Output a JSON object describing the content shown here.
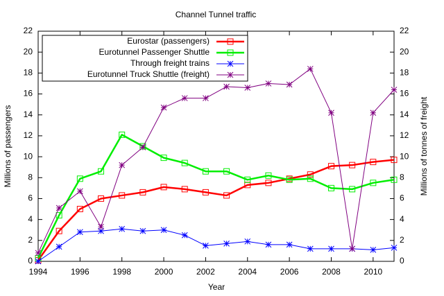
{
  "chart_data": {
    "type": "line",
    "title": "Channel Tunnel traffic",
    "x_label": "Year",
    "y_label": "Millions of passengers",
    "y2_label": "Millions of tonnes of freight",
    "x": [
      1994,
      1995,
      1996,
      1997,
      1998,
      1999,
      2000,
      2001,
      2002,
      2003,
      2004,
      2005,
      2006,
      2007,
      2008,
      2009,
      2010,
      2011
    ],
    "xlim": [
      1994,
      2011
    ],
    "xticks": [
      1994,
      1996,
      1998,
      2000,
      2002,
      2004,
      2006,
      2008,
      2010
    ],
    "ylim": [
      0,
      22
    ],
    "yticks": [
      0,
      2,
      4,
      6,
      8,
      10,
      12,
      14,
      16,
      18,
      20,
      22
    ],
    "y2lim": [
      0,
      22
    ],
    "y2ticks": [
      0,
      2,
      4,
      6,
      8,
      10,
      12,
      14,
      16,
      18,
      20,
      22
    ],
    "legend": "upper left",
    "series": [
      {
        "name": "Eurostar (passengers)",
        "color": "#ff0000",
        "marker": "square",
        "width": 2.5,
        "values": [
          0.1,
          2.9,
          5.0,
          6.0,
          6.3,
          6.6,
          7.1,
          6.9,
          6.6,
          6.3,
          7.3,
          7.5,
          7.9,
          8.3,
          9.1,
          9.2,
          9.5,
          9.7
        ]
      },
      {
        "name": "Eurotunnel Passenger Shuttle",
        "color": "#00ee00",
        "marker": "square",
        "width": 2.5,
        "values": [
          0.3,
          4.4,
          7.9,
          8.6,
          12.1,
          11.0,
          9.9,
          9.4,
          8.6,
          8.6,
          7.8,
          8.2,
          7.8,
          7.9,
          7.0,
          6.9,
          7.5,
          7.8
        ]
      },
      {
        "name": "Through freight trains",
        "color": "#0000ff",
        "marker": "star",
        "width": 1,
        "axis": "y2",
        "values": [
          0.0,
          1.4,
          2.8,
          2.9,
          3.1,
          2.9,
          3.0,
          2.5,
          1.5,
          1.7,
          1.9,
          1.6,
          1.6,
          1.2,
          1.2,
          1.2,
          1.1,
          1.3
        ]
      },
      {
        "name": "Eurotunnel Truck Shuttle (freight)",
        "color": "#800080",
        "marker": "star",
        "width": 1,
        "axis": "y2",
        "values": [
          0.8,
          5.1,
          6.7,
          3.3,
          9.2,
          10.9,
          14.7,
          15.6,
          15.6,
          16.7,
          16.6,
          17.0,
          16.9,
          18.4,
          14.2,
          1.2,
          14.2,
          16.4
        ]
      }
    ]
  }
}
